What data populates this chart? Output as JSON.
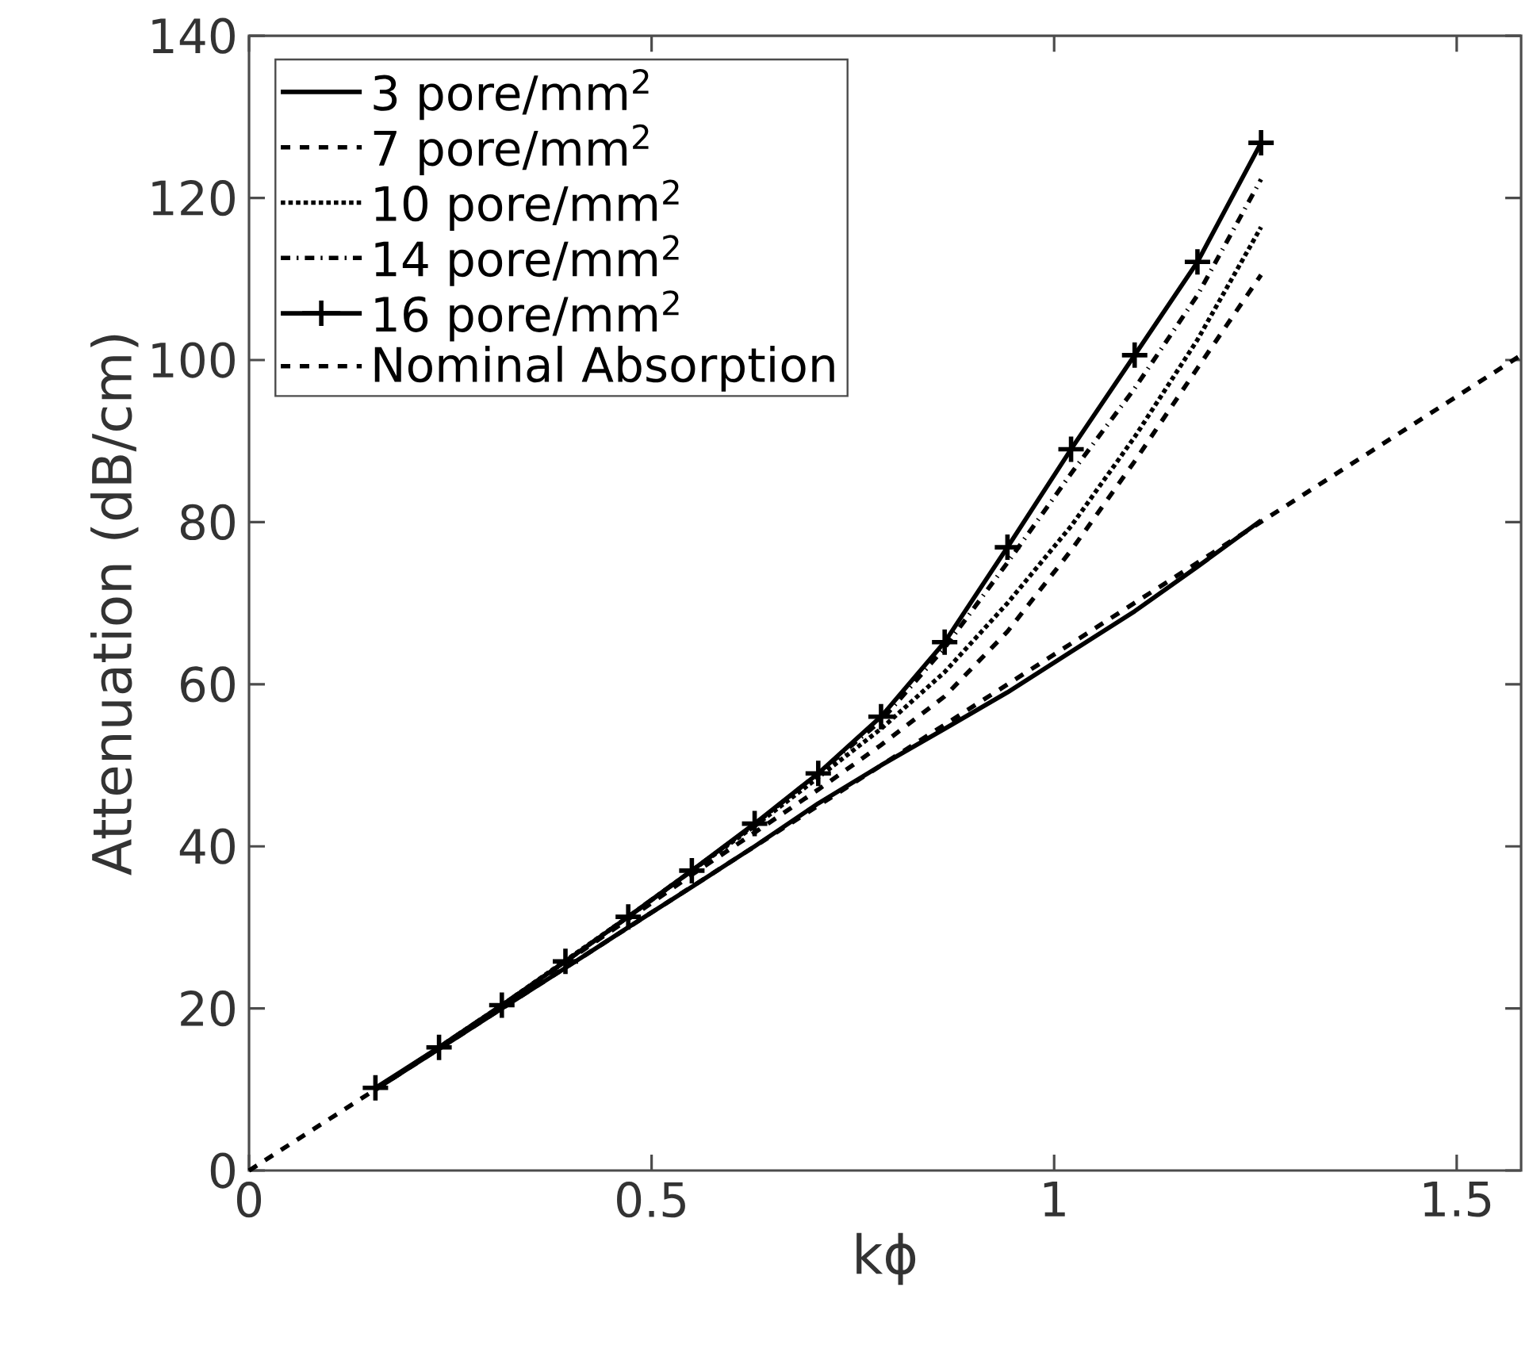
{
  "chart_data": {
    "type": "line",
    "xlabel": "kϕ",
    "ylabel": "Attenuation (dB/cm)",
    "xlim": [
      0,
      1.58
    ],
    "ylim": [
      0,
      140
    ],
    "xticks": [
      0,
      0.5,
      1,
      1.5
    ],
    "yticks": [
      0,
      20,
      40,
      60,
      80,
      100,
      120,
      140
    ],
    "legend": "top left",
    "grid": false,
    "x": [
      0.157,
      0.236,
      0.314,
      0.393,
      0.471,
      0.55,
      0.628,
      0.707,
      0.785,
      0.864,
      0.942,
      1.021,
      1.1,
      1.178,
      1.257
    ],
    "series": [
      {
        "name": "3 pore/mm$^{2}$",
        "color": "#000000",
        "line_style": "solid",
        "values": [
          10,
          15,
          20,
          25,
          30,
          35,
          40,
          45.3,
          50,
          54.5,
          59,
          64,
          69,
          74.5,
          80.2
        ]
      },
      {
        "name": "7 pore/mm$^{2}$",
        "color": "#000000",
        "line_style": "dashed",
        "values": [
          10,
          15.1,
          20.3,
          25.7,
          31,
          36.5,
          41.7,
          47,
          52.5,
          58.5,
          66.5,
          76.5,
          87.5,
          99,
          110.5
        ]
      },
      {
        "name": "10 pore/mm$^{2}$",
        "color": "#000000",
        "line_style": "dotted",
        "values": [
          10,
          15.2,
          20.4,
          25.9,
          31.3,
          37,
          42.5,
          48.5,
          54.5,
          61.5,
          70,
          79.5,
          90.5,
          102.5,
          116.4
        ]
      },
      {
        "name": "14 pore/mm$^{2}$",
        "color": "#000000",
        "line_style": "dashdot",
        "values": [
          10,
          15.2,
          20.4,
          25.8,
          31.3,
          37,
          42.7,
          49,
          55.5,
          64.5,
          75,
          86,
          96.5,
          108,
          122.3
        ]
      },
      {
        "name": "16 pore/mm$^{2}$",
        "color": "#000000",
        "line_style": "solid",
        "marker": "cross",
        "values": [
          10.2,
          15.2,
          20.4,
          25.8,
          31.3,
          37,
          42.8,
          49,
          56,
          65.2,
          76.9,
          89,
          100.6,
          112.1,
          126.8
        ]
      },
      {
        "name": "Nominal Absorption",
        "color": "#000000",
        "line_style": "dashed",
        "x": [
          0,
          1.58
        ],
        "values": [
          0,
          100.6
        ]
      }
    ]
  }
}
